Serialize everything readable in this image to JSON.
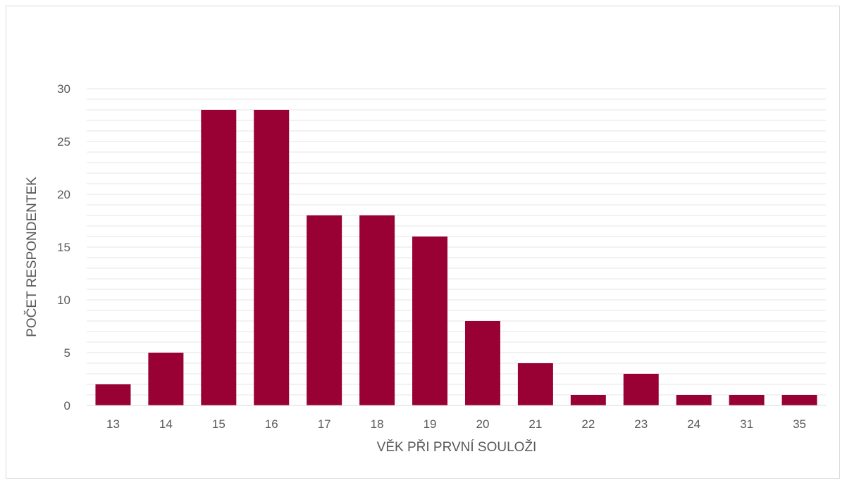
{
  "chart_data": {
    "type": "bar",
    "title": "",
    "xlabel": "VĚK PŘI PRVNÍ SOULOŽI",
    "ylabel": "POČET RESPONDENTEK",
    "categories": [
      "13",
      "14",
      "15",
      "16",
      "17",
      "18",
      "19",
      "20",
      "21",
      "22",
      "23",
      "24",
      "31",
      "35"
    ],
    "values": [
      2,
      5,
      28,
      28,
      18,
      18,
      16,
      8,
      4,
      1,
      3,
      1,
      1,
      1
    ],
    "ylim": [
      0,
      30
    ],
    "yticks": [
      "0",
      "5",
      "10",
      "15",
      "20",
      "25",
      "30"
    ],
    "minor_grid_step": 1,
    "grid": true,
    "legend": "none",
    "colors": {
      "bar": "#990033",
      "grid": "#e6e6e6",
      "axis": "#d9d9d9",
      "text": "#595959"
    }
  }
}
